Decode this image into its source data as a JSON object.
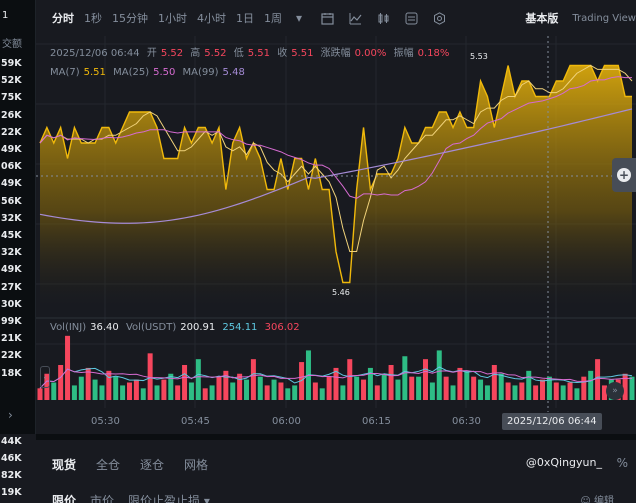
{
  "left_strip": {
    "header": "1",
    "header2": "交额",
    "values": [
      "59K",
      "52K",
      "75K",
      "26K",
      "22K",
      "49K",
      "06K",
      "49K",
      "56K",
      "32K",
      "45K",
      "32K",
      "49K",
      "27K",
      "30K",
      "99K",
      "21K",
      "22K",
      "18K"
    ],
    "values2": [
      "44K",
      "46K",
      "82K",
      "19K"
    ]
  },
  "toolbar": {
    "intervals": [
      "分时",
      "1秒",
      "15分钟",
      "1小时",
      "4小时",
      "1日",
      "1周"
    ],
    "active": "分时",
    "basic": "基本版",
    "tradingview": "Trading View"
  },
  "ohlc": {
    "date": "2025/12/06 06:44",
    "open_label": "开",
    "open": "5.52",
    "high_label": "高",
    "high": "5.52",
    "low_label": "低",
    "low": "5.51",
    "close_label": "收",
    "close": "5.51",
    "change_label": "涨跌幅",
    "change": "0.00%",
    "amp_label": "振幅",
    "amp": "0.18%"
  },
  "ma": {
    "ma7_label": "MA(7)",
    "ma7": "5.51",
    "ma25_label": "MA(25)",
    "ma25": "5.50",
    "ma99_label": "MA(99)",
    "ma99": "5.48"
  },
  "price_marks": {
    "high": "5.53",
    "low": "5.46"
  },
  "volume": {
    "vol_label": "Vol(INJ)",
    "vol": "36.40",
    "usdt_label": "Vol(USDT)",
    "usdt": "200.91",
    "ma1": "254.11",
    "ma2": "306.02"
  },
  "x_axis": [
    "05:30",
    "05:45",
    "06:00",
    "06:15",
    "06:30"
  ],
  "crosshair_time": "2025/12/06 06:44",
  "colors": {
    "up": "#2ebd85",
    "down": "#f6465d",
    "line": "#f0b90b",
    "ma25": "#d56bd0",
    "ma99": "#a58bd6"
  },
  "chart_data": {
    "type": "area",
    "price": [
      5.505,
      5.51,
      5.505,
      5.51,
      5.5,
      5.51,
      5.505,
      5.505,
      5.505,
      5.51,
      5.51,
      5.505,
      5.51,
      5.515,
      5.515,
      5.515,
      5.515,
      5.51,
      5.5,
      5.5,
      5.5,
      5.51,
      5.505,
      5.51,
      5.51,
      5.505,
      5.51,
      5.49,
      5.505,
      5.51,
      5.5,
      5.505,
      5.5,
      5.49,
      5.49,
      5.5,
      5.49,
      5.5,
      5.5,
      5.49,
      5.5,
      5.49,
      5.49,
      5.47,
      5.46,
      5.46,
      5.49,
      5.51,
      5.49,
      5.495,
      5.495,
      5.495,
      5.5,
      5.51,
      5.505,
      5.505,
      5.51,
      5.51,
      5.515,
      5.515,
      5.51,
      5.515,
      5.51,
      5.51,
      5.525,
      5.52,
      5.51,
      5.52,
      5.53,
      5.52,
      5.525,
      5.525,
      5.52,
      5.52,
      5.52,
      5.525,
      5.525,
      5.53,
      5.53,
      5.53,
      5.53,
      5.525,
      5.53,
      5.53,
      5.53,
      5.52,
      5.52
    ],
    "vol": [
      20,
      45,
      30,
      60,
      110,
      25,
      40,
      55,
      35,
      25,
      50,
      40,
      25,
      30,
      35,
      20,
      80,
      25,
      35,
      45,
      25,
      60,
      30,
      70,
      20,
      25,
      40,
      50,
      30,
      45,
      35,
      70,
      40,
      25,
      35,
      30,
      20,
      25,
      65,
      85,
      30,
      20,
      40,
      55,
      25,
      70,
      40,
      35,
      55,
      25,
      45,
      60,
      35,
      75,
      40,
      40,
      70,
      30,
      85,
      40,
      25,
      55,
      50,
      40,
      35,
      25,
      60,
      45,
      30,
      25,
      30,
      50,
      25,
      35,
      40,
      30,
      25,
      30,
      20,
      40,
      50,
      70,
      25,
      35,
      35,
      45,
      40
    ],
    "vol_up": [
      0,
      0,
      1,
      0,
      0,
      1,
      1,
      0,
      1,
      1,
      0,
      1,
      1,
      0,
      0,
      1,
      0,
      1,
      0,
      1,
      0,
      0,
      1,
      1,
      0,
      1,
      0,
      0,
      1,
      0,
      1,
      0,
      1,
      0,
      1,
      0,
      1,
      1,
      0,
      1,
      0,
      1,
      0,
      0,
      1,
      0,
      1,
      0,
      1,
      0,
      1,
      0,
      1,
      1,
      0,
      1,
      0,
      1,
      1,
      0,
      1,
      0,
      1,
      0,
      1,
      1,
      0,
      1,
      0,
      1,
      0,
      1,
      0,
      0,
      1,
      0,
      1,
      0,
      1,
      0,
      1,
      0,
      0,
      1,
      0,
      0,
      1
    ]
  }
}
